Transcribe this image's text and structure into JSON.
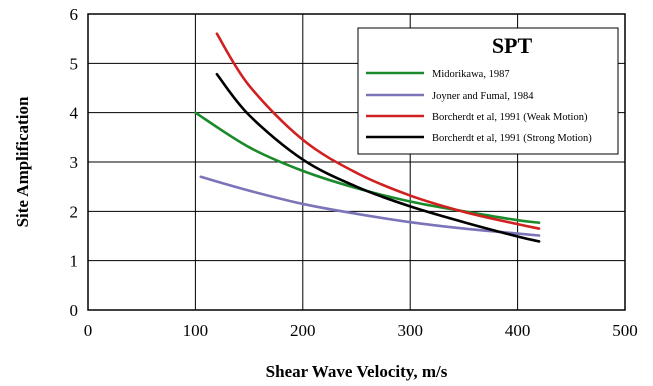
{
  "chart_data": {
    "type": "line",
    "title": "",
    "xlabel": "Shear Wave Velocity, m/s",
    "ylabel": "Site Amplification",
    "xlim": [
      0,
      500
    ],
    "ylim": [
      0,
      6
    ],
    "x_ticks": [
      0,
      100,
      200,
      300,
      400,
      500
    ],
    "y_ticks": [
      0,
      1,
      2,
      3,
      4,
      5,
      6
    ],
    "grid": true,
    "legend": {
      "title": "SPT",
      "placement": "top-right"
    },
    "series": [
      {
        "name": "Midorikawa, 1987",
        "color": "#1a8a2a",
        "x": [
          100,
          150,
          200,
          250,
          300,
          350,
          400,
          420
        ],
        "y": [
          4.0,
          3.3,
          2.82,
          2.47,
          2.2,
          2.0,
          1.82,
          1.77
        ]
      },
      {
        "name": "Joyner and Fumal, 1984",
        "color": "#7b74b8",
        "x": [
          105,
          150,
          200,
          250,
          300,
          350,
          400,
          420
        ],
        "y": [
          2.7,
          2.42,
          2.15,
          1.95,
          1.78,
          1.65,
          1.55,
          1.51
        ]
      },
      {
        "name": "Borcherdt et al, 1991 (Weak Motion)",
        "color": "#d02020",
        "x": [
          120,
          150,
          200,
          250,
          300,
          350,
          400,
          420
        ],
        "y": [
          5.6,
          4.55,
          3.45,
          2.78,
          2.32,
          1.99,
          1.74,
          1.65
        ]
      },
      {
        "name": "Borcherdt et al, 1991 (Strong Motion)",
        "color": "#000000",
        "x": [
          120,
          150,
          200,
          250,
          300,
          350,
          400,
          420
        ],
        "y": [
          4.78,
          3.95,
          3.05,
          2.5,
          2.1,
          1.78,
          1.49,
          1.39
        ]
      }
    ]
  }
}
